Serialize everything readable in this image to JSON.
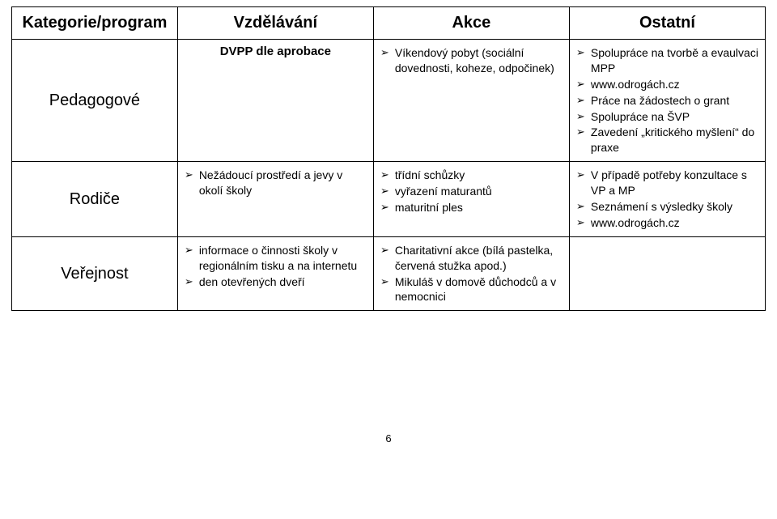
{
  "header": {
    "col1": "Kategorie/program",
    "col2": "Vzdělávání",
    "col3": "Akce",
    "col4": "Ostatní"
  },
  "rows": {
    "pedagogove": {
      "label": "Pedagogové",
      "vzdelavani_sub": "DVPP dle aprobace",
      "akce": [
        "Víkendový pobyt (sociální dovednosti, koheze, odpočinek)"
      ],
      "ostatni": [
        "Spolupráce na tvorbě a evaulvaci MPP",
        "www.odrogách.cz",
        "Práce na žádostech o grant",
        "Spolupráce na ŠVP",
        "Zavedení „kritického myšlení“ do praxe"
      ]
    },
    "rodice": {
      "label": "Rodiče",
      "vzdelavani": [
        "Nežádoucí prostředí a jevy v okolí školy"
      ],
      "akce": [
        "třídní schůzky",
        "vyřazení maturantů",
        "maturitní ples"
      ],
      "ostatni": [
        "V případě potřeby konzultace s VP a MP",
        "Seznámení s výsledky školy",
        "www.odrogách.cz"
      ]
    },
    "verejnost": {
      "label": "Veřejnost",
      "vzdelavani": [
        "informace o činnosti školy v regionálním tisku a na internetu",
        "den otevřených dveří"
      ],
      "akce": [
        "Charitativní akce (bílá pastelka, červená stužka apod.)",
        "Mikuláš v domově důchodců a v nemocnici"
      ]
    }
  },
  "page_number": "6"
}
